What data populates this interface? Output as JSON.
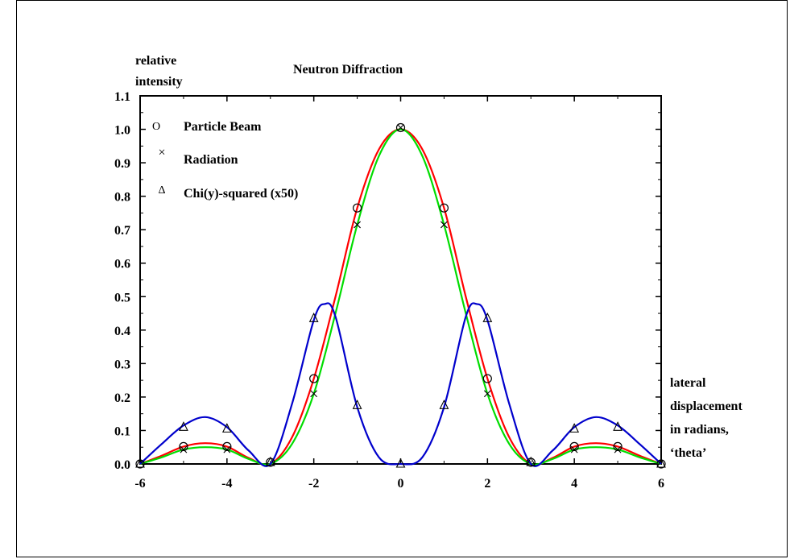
{
  "chart_data": {
    "type": "line",
    "title": "Neutron Diffraction",
    "ylabel_lines": [
      "relative",
      "intensity"
    ],
    "xlabel_lines": [
      "lateral",
      "displacement",
      "in radians,",
      "‘theta’"
    ],
    "xlim": [
      -6,
      6
    ],
    "ylim": [
      0,
      1.1
    ],
    "x_ticks": [
      -6,
      -4,
      -2,
      0,
      2,
      4,
      6
    ],
    "y_ticks": [
      0.0,
      0.1,
      0.2,
      0.3,
      0.4,
      0.5,
      0.6,
      0.7,
      0.8,
      0.9,
      1.0,
      1.1
    ],
    "y_tick_labels": [
      "0.0",
      "0.1",
      "0.2",
      "0.3",
      "0.4",
      "0.5",
      "0.6",
      "0.7",
      "0.8",
      "0.9",
      "1.0",
      "1.1"
    ],
    "grid": false,
    "legend_position": "top-left",
    "legend": [
      {
        "marker": "o",
        "marker_glyph": "O",
        "label": "Particle Beam"
      },
      {
        "marker": "x",
        "marker_glyph": "×",
        "label": "Radiation"
      },
      {
        "marker": "triangle",
        "marker_glyph": "Δ",
        "label": "Chi(y)-squared (x50)"
      }
    ],
    "curves": [
      {
        "color": "#ff0000",
        "x": [
          -6.0,
          -5.5,
          -5.0,
          -4.5,
          -4.0,
          -3.5,
          -3.0,
          -2.5,
          -2.0,
          -1.5,
          -1.0,
          -0.5,
          0.0,
          0.5,
          1.0,
          1.5,
          2.0,
          2.5,
          3.0,
          3.5,
          4.0,
          4.5,
          5.0,
          5.5,
          6.0
        ],
        "values": [
          0.0,
          0.025,
          0.052,
          0.062,
          0.052,
          0.018,
          0.0,
          0.08,
          0.255,
          0.5,
          0.765,
          0.94,
          1.0,
          0.94,
          0.765,
          0.5,
          0.255,
          0.08,
          0.0,
          0.018,
          0.052,
          0.062,
          0.052,
          0.025,
          0.0
        ]
      },
      {
        "color": "#00dd00",
        "x": [
          -6.0,
          -5.5,
          -5.0,
          -4.5,
          -4.0,
          -3.5,
          -3.0,
          -2.5,
          -2.0,
          -1.5,
          -1.0,
          -0.5,
          0.0,
          0.5,
          1.0,
          1.5,
          2.0,
          2.5,
          3.0,
          3.5,
          4.0,
          4.5,
          5.0,
          5.5,
          6.0
        ],
        "values": [
          0.0,
          0.02,
          0.043,
          0.05,
          0.043,
          0.015,
          0.0,
          0.06,
          0.21,
          0.45,
          0.715,
          0.92,
          1.0,
          0.92,
          0.715,
          0.45,
          0.21,
          0.06,
          0.0,
          0.015,
          0.043,
          0.05,
          0.043,
          0.02,
          0.0
        ]
      },
      {
        "color": "#0000cc",
        "x": [
          -6.0,
          -5.5,
          -5.0,
          -4.5,
          -4.0,
          -3.5,
          -3.0,
          -2.5,
          -2.0,
          -1.75,
          -1.5,
          -1.0,
          -0.5,
          0.0,
          0.5,
          1.0,
          1.5,
          1.75,
          2.0,
          2.5,
          3.0,
          3.5,
          4.0,
          4.5,
          5.0,
          5.5,
          6.0
        ],
        "values": [
          0.0,
          0.06,
          0.115,
          0.14,
          0.11,
          0.04,
          0.0,
          0.18,
          0.43,
          0.478,
          0.44,
          0.17,
          0.02,
          0.0,
          0.02,
          0.17,
          0.44,
          0.478,
          0.43,
          0.18,
          0.0,
          0.04,
          0.11,
          0.14,
          0.115,
          0.06,
          0.0
        ]
      }
    ],
    "series": [
      {
        "name": "Particle Beam",
        "marker": "o",
        "x": [
          -6,
          -5,
          -4,
          -3,
          -2,
          -1,
          0,
          1,
          2,
          3,
          4,
          5,
          6
        ],
        "values": [
          0.0,
          0.052,
          0.052,
          0.005,
          0.255,
          0.765,
          1.005,
          0.765,
          0.255,
          0.005,
          0.052,
          0.052,
          0.0
        ]
      },
      {
        "name": "Radiation",
        "marker": "x",
        "x": [
          -5,
          -4,
          -2,
          -1,
          0,
          1,
          2,
          4,
          5
        ],
        "values": [
          0.043,
          0.043,
          0.21,
          0.715,
          1.005,
          0.715,
          0.21,
          0.043,
          0.043
        ]
      },
      {
        "name": "Chi(y)-squared (x50)",
        "marker": "triangle",
        "x": [
          -6,
          -5,
          -4,
          -3,
          -2,
          -1,
          0,
          1,
          2,
          3,
          4,
          5,
          6
        ],
        "values": [
          0.0,
          0.11,
          0.105,
          0.005,
          0.435,
          0.175,
          0.0,
          0.175,
          0.435,
          0.005,
          0.105,
          0.11,
          0.0
        ]
      }
    ]
  }
}
